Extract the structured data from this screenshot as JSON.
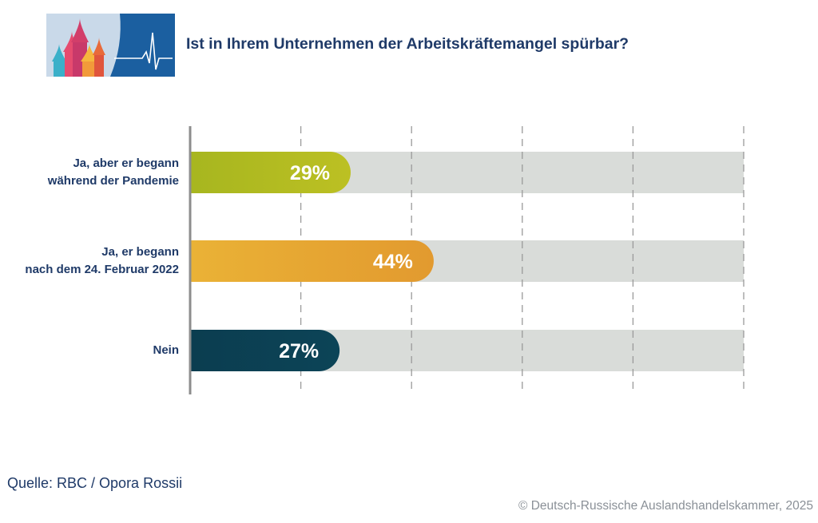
{
  "title": "Ist in Ihrem Unternehmen der Arbeitskräftemangel spürbar?",
  "source": "Quelle: RBC / Opora Rossii",
  "copyright": "© Deutsch-Russische Auslandshandelskammer, 2025",
  "logo": {
    "icon": "onion-dome-heartbeat-logo",
    "colors": [
      "#c8d8e8",
      "#1b5fa0",
      "#e64b6f",
      "#f29a3a",
      "#3bb0c9"
    ]
  },
  "chart_data": {
    "type": "bar",
    "orientation": "horizontal",
    "title": "Ist in Ihrem Unternehmen der Arbeitskräftemangel spürbar?",
    "categories": [
      [
        "Ja, aber er begann",
        "während der Pandemie"
      ],
      [
        "Ja, er begann",
        "nach dem 24. Februar 2022"
      ],
      [
        "Nein"
      ]
    ],
    "values": [
      29,
      44,
      27
    ],
    "value_labels": [
      "29%",
      "44%",
      "27%"
    ],
    "colors": [
      "#b5bd1e",
      "#e9a535",
      "#0c3f52"
    ],
    "xlim": [
      0,
      100
    ],
    "unit": "%",
    "grid": true,
    "grid_style": "dashed",
    "legend": "none"
  }
}
